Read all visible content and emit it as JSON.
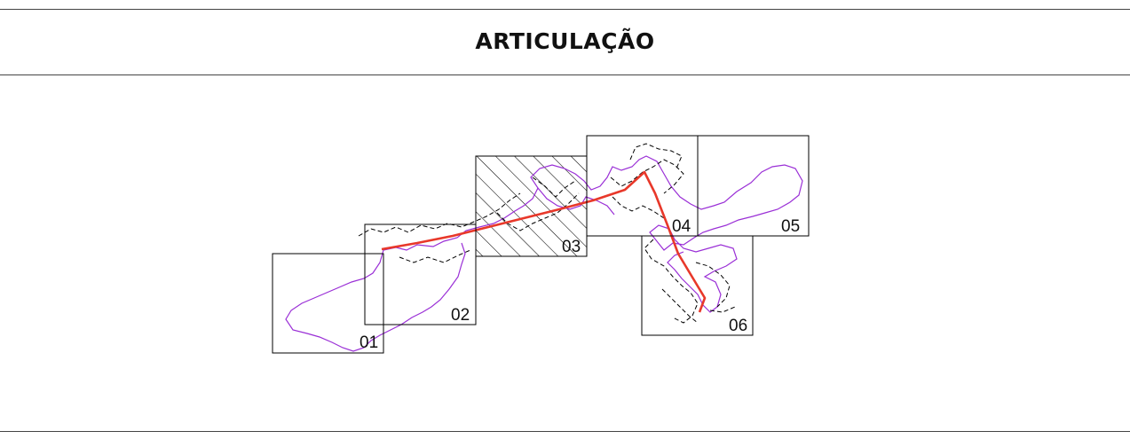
{
  "title": "ARTICULAÇÃO",
  "colors": {
    "frame": "#000000",
    "basin_outline": "#9a2fd6",
    "route_line": "#e8382a",
    "dashed_limits": "#000000",
    "hatch": "#000000"
  },
  "sheets": [
    {
      "id": "01",
      "label": "01",
      "highlighted": false
    },
    {
      "id": "02",
      "label": "02",
      "highlighted": false
    },
    {
      "id": "03",
      "label": "03",
      "highlighted": true
    },
    {
      "id": "04",
      "label": "04",
      "highlighted": false
    },
    {
      "id": "05",
      "label": "05",
      "highlighted": false
    },
    {
      "id": "06",
      "label": "06",
      "highlighted": false
    }
  ]
}
